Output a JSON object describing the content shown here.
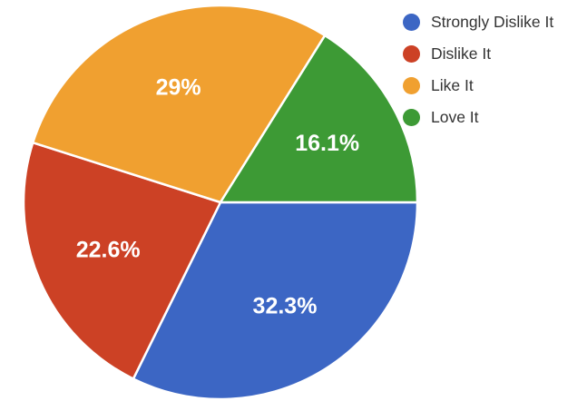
{
  "chart_data": {
    "type": "pie",
    "title": "",
    "start_angle_deg": 90,
    "direction": "clockwise",
    "legend_position": "right-top",
    "slices": [
      {
        "name": "Strongly Dislike It",
        "value": 32.3,
        "label": "32.3%",
        "color": "#3C66C4"
      },
      {
        "name": "Dislike It",
        "value": 22.6,
        "label": "22.6%",
        "color": "#CC4125"
      },
      {
        "name": "Like It",
        "value": 29.0,
        "label": "29%",
        "color": "#F0A030"
      },
      {
        "name": "Love It",
        "value": 16.1,
        "label": "16.1%",
        "color": "#3D9A35"
      }
    ]
  }
}
